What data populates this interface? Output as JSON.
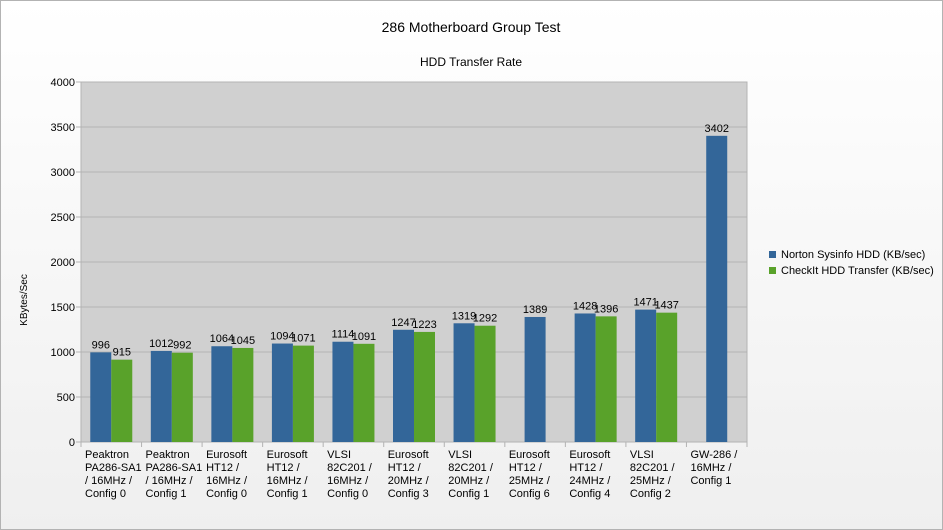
{
  "chart_data": {
    "type": "bar",
    "title": "286 Motherboard Group Test",
    "subtitle": "HDD Transfer Rate",
    "xlabel": "",
    "ylabel": "KBytes/Sec",
    "ylim": [
      0,
      4000
    ],
    "yticks": [
      0,
      500,
      1000,
      1500,
      2000,
      2500,
      3000,
      3500,
      4000
    ],
    "grid": true,
    "legend_position": "right",
    "categories": [
      [
        "Peaktron",
        "PA286-SA1",
        "/ 16MHz /",
        "Config 0"
      ],
      [
        "Peaktron",
        "PA286-SA1",
        "/ 16MHz /",
        "Config 1"
      ],
      [
        "Eurosoft",
        "HT12 /",
        "16MHz /",
        "Config 0"
      ],
      [
        "Eurosoft",
        "HT12 /",
        "16MHz /",
        "Config 1"
      ],
      [
        "VLSI",
        "82C201 /",
        "16MHz /",
        "Config 0"
      ],
      [
        "Eurosoft",
        "HT12 /",
        "20MHz /",
        "Config 3"
      ],
      [
        "VLSI",
        "82C201 /",
        "20MHz /",
        "Config 1"
      ],
      [
        "Eurosoft",
        "HT12 /",
        "25MHz /",
        "Config 6"
      ],
      [
        "Eurosoft",
        "HT12 /",
        "24MHz /",
        "Config 4"
      ],
      [
        "VLSI",
        "82C201 /",
        "25MHz /",
        "Config 2"
      ],
      [
        "GW-286 /",
        "16MHz /",
        "Config 1"
      ]
    ],
    "series": [
      {
        "name": "Norton Sysinfo HDD (KB/sec)",
        "color": "#336699",
        "values": [
          996,
          1012,
          1064,
          1094,
          1114,
          1247,
          1319,
          1389,
          1428,
          1471,
          3402
        ]
      },
      {
        "name": "CheckIt HDD Transfer (KB/sec)",
        "color": "#59a22a",
        "values": [
          915,
          992,
          1045,
          1071,
          1091,
          1223,
          1292,
          null,
          1396,
          1437,
          null
        ]
      }
    ]
  }
}
